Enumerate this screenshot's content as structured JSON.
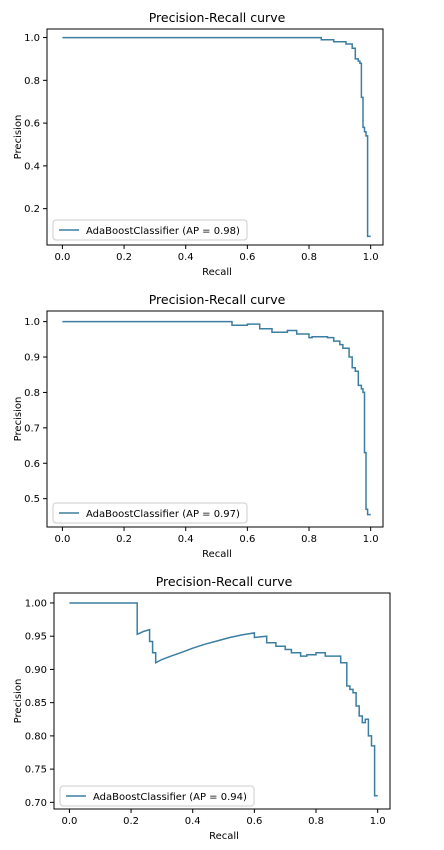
{
  "chart_data": [
    {
      "type": "line",
      "title": "Precision-Recall curve",
      "xlabel": "Recall",
      "ylabel": "Precision",
      "xlim": [
        -0.05,
        1.04
      ],
      "ylim": [
        0.03,
        1.04
      ],
      "xticks": [
        0.0,
        0.2,
        0.4,
        0.6,
        0.8,
        1.0
      ],
      "xtick_labels": [
        "0.0",
        "0.2",
        "0.4",
        "0.6",
        "0.8",
        "1.0"
      ],
      "yticks": [
        0.2,
        0.4,
        0.6,
        0.8,
        1.0
      ],
      "ytick_labels": [
        "0.2",
        "0.4",
        "0.6",
        "0.8",
        "1.0"
      ],
      "legend": "lower-left",
      "grid": false,
      "color": "#3b7ea1",
      "series": [
        {
          "name": "AdaBoostClassifier (AP = 0.98)",
          "x": [
            0.0,
            0.84,
            0.84,
            0.88,
            0.88,
            0.92,
            0.92,
            0.94,
            0.94,
            0.95,
            0.95,
            0.96,
            0.96,
            0.965,
            0.965,
            0.97,
            0.97,
            0.975,
            0.975,
            0.98,
            0.98,
            0.985,
            0.985,
            0.99,
            0.99,
            1.0
          ],
          "y": [
            1.0,
            1.0,
            0.99,
            0.99,
            0.98,
            0.98,
            0.97,
            0.97,
            0.95,
            0.95,
            0.9,
            0.9,
            0.89,
            0.89,
            0.88,
            0.88,
            0.72,
            0.72,
            0.58,
            0.58,
            0.56,
            0.56,
            0.54,
            0.54,
            0.07,
            0.07
          ]
        }
      ]
    },
    {
      "type": "line",
      "title": "Precision-Recall curve",
      "xlabel": "Recall",
      "ylabel": "Precision",
      "xlim": [
        -0.05,
        1.04
      ],
      "ylim": [
        0.42,
        1.03
      ],
      "xticks": [
        0.0,
        0.2,
        0.4,
        0.6,
        0.8,
        1.0
      ],
      "xtick_labels": [
        "0.0",
        "0.2",
        "0.4",
        "0.6",
        "0.8",
        "1.0"
      ],
      "yticks": [
        0.5,
        0.6,
        0.7,
        0.8,
        0.9,
        1.0
      ],
      "ytick_labels": [
        "0.5",
        "0.6",
        "0.7",
        "0.8",
        "0.9",
        "1.0"
      ],
      "legend": "lower-left",
      "grid": false,
      "color": "#3b7ea1",
      "series": [
        {
          "name": "AdaBoostClassifier (AP = 0.97)",
          "x": [
            0.0,
            0.55,
            0.55,
            0.6,
            0.6,
            0.64,
            0.64,
            0.68,
            0.68,
            0.73,
            0.73,
            0.76,
            0.76,
            0.8,
            0.8,
            0.81,
            0.81,
            0.86,
            0.86,
            0.88,
            0.88,
            0.9,
            0.9,
            0.91,
            0.91,
            0.93,
            0.93,
            0.94,
            0.94,
            0.95,
            0.95,
            0.96,
            0.96,
            0.97,
            0.97,
            0.975,
            0.975,
            0.98,
            0.98,
            0.985,
            0.985,
            0.99,
            0.99,
            1.0
          ],
          "y": [
            1.0,
            1.0,
            0.99,
            0.99,
            0.993,
            0.993,
            0.98,
            0.98,
            0.97,
            0.97,
            0.975,
            0.975,
            0.965,
            0.965,
            0.955,
            0.955,
            0.957,
            0.957,
            0.955,
            0.955,
            0.945,
            0.945,
            0.935,
            0.935,
            0.925,
            0.925,
            0.9,
            0.9,
            0.87,
            0.87,
            0.86,
            0.86,
            0.82,
            0.82,
            0.81,
            0.81,
            0.8,
            0.8,
            0.63,
            0.63,
            0.47,
            0.47,
            0.455,
            0.455
          ]
        }
      ]
    },
    {
      "type": "line",
      "title": "Precision-Recall curve",
      "xlabel": "Recall",
      "ylabel": "Precision",
      "xlim": [
        -0.05,
        1.04
      ],
      "ylim": [
        0.69,
        1.015
      ],
      "xticks": [
        0.0,
        0.2,
        0.4,
        0.6,
        0.8,
        1.0
      ],
      "xtick_labels": [
        "0.0",
        "0.2",
        "0.4",
        "0.6",
        "0.8",
        "1.0"
      ],
      "yticks": [
        0.7,
        0.75,
        0.8,
        0.85,
        0.9,
        0.95,
        1.0
      ],
      "ytick_labels": [
        "0.70",
        "0.75",
        "0.80",
        "0.85",
        "0.90",
        "0.95",
        "1.00"
      ],
      "legend": "lower-left",
      "grid": false,
      "color": "#3b7ea1",
      "series": [
        {
          "name": "AdaBoostClassifier (AP = 0.94)",
          "x": [
            0.0,
            0.22,
            0.22,
            0.23,
            0.24,
            0.26,
            0.26,
            0.27,
            0.27,
            0.28,
            0.28,
            0.3,
            0.33,
            0.36,
            0.4,
            0.44,
            0.48,
            0.52,
            0.56,
            0.6,
            0.6,
            0.64,
            0.64,
            0.67,
            0.67,
            0.7,
            0.7,
            0.72,
            0.72,
            0.75,
            0.75,
            0.77,
            0.77,
            0.8,
            0.8,
            0.83,
            0.83,
            0.86,
            0.86,
            0.88,
            0.88,
            0.9,
            0.9,
            0.91,
            0.91,
            0.92,
            0.92,
            0.93,
            0.93,
            0.94,
            0.94,
            0.95,
            0.95,
            0.96,
            0.96,
            0.97,
            0.97,
            0.98,
            0.98,
            0.99,
            0.99,
            1.0
          ],
          "y": [
            1.0,
            1.0,
            0.953,
            0.955,
            0.957,
            0.96,
            0.942,
            0.942,
            0.925,
            0.925,
            0.91,
            0.915,
            0.92,
            0.925,
            0.932,
            0.938,
            0.943,
            0.948,
            0.952,
            0.955,
            0.948,
            0.95,
            0.94,
            0.94,
            0.935,
            0.935,
            0.93,
            0.93,
            0.925,
            0.925,
            0.92,
            0.92,
            0.922,
            0.922,
            0.925,
            0.925,
            0.92,
            0.92,
            0.92,
            0.92,
            0.91,
            0.91,
            0.875,
            0.875,
            0.87,
            0.87,
            0.865,
            0.865,
            0.845,
            0.845,
            0.83,
            0.83,
            0.82,
            0.82,
            0.825,
            0.825,
            0.8,
            0.8,
            0.785,
            0.785,
            0.71,
            0.71
          ]
        }
      ]
    }
  ]
}
